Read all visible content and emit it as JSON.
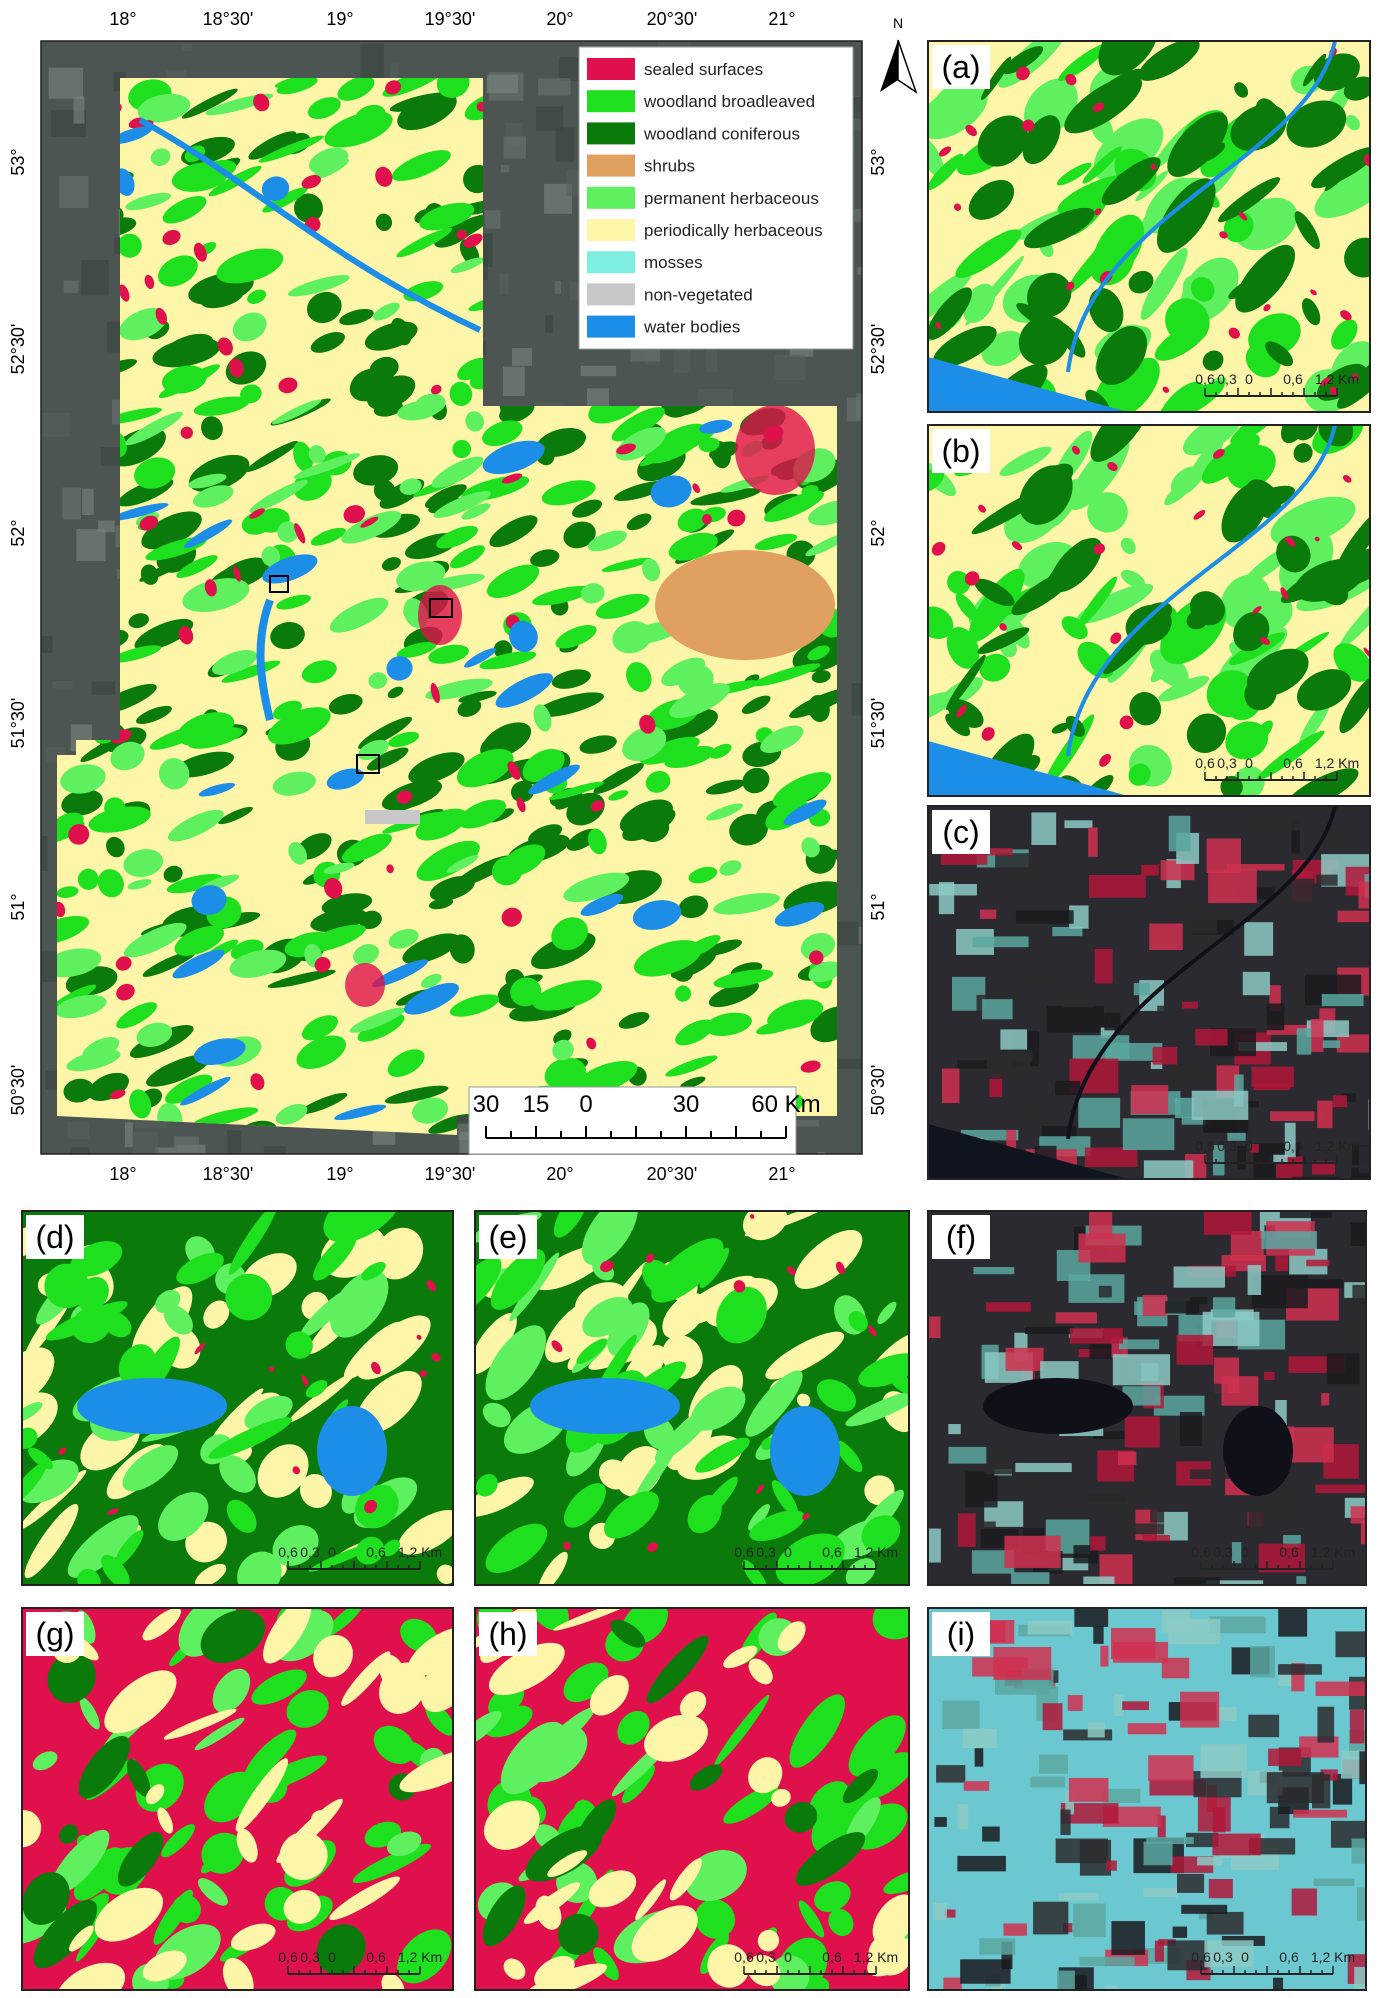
{
  "map": {
    "north": "N",
    "lon_labels": [
      "18°",
      "18°30'",
      "19°",
      "19°30'",
      "20°",
      "20°30'",
      "21°"
    ],
    "lat_labels": [
      "53°",
      "52°30'",
      "52°",
      "51°30'",
      "51°",
      "50°30'"
    ],
    "legend": [
      {
        "name": "sealed surfaces",
        "color": "#e0104c"
      },
      {
        "name": "woodland broadleaved",
        "color": "#1ee01e"
      },
      {
        "name": "woodland coniferous",
        "color": "#0a7a0a"
      },
      {
        "name": "shrubs",
        "color": "#e0a060"
      },
      {
        "name": "permanent herbaceous",
        "color": "#5ef05e"
      },
      {
        "name": "periodically herbaceous",
        "color": "#fdf6a8"
      },
      {
        "name": "mosses",
        "color": "#7eeee0"
      },
      {
        "name": "non-vegetated",
        "color": "#c8c8c8"
      },
      {
        "name": "water bodies",
        "color": "#1c8ee8"
      }
    ],
    "scale_labels": [
      "30",
      "15",
      "0",
      "30",
      "60 Km"
    ]
  },
  "panels": {
    "labels": [
      "(a)",
      "(b)",
      "(c)",
      "(d)",
      "(e)",
      "(f)",
      "(g)",
      "(h)",
      "(i)"
    ],
    "scale_labels": [
      "0,6",
      "0,3",
      "0",
      "0,6",
      "1,2 Km"
    ]
  }
}
